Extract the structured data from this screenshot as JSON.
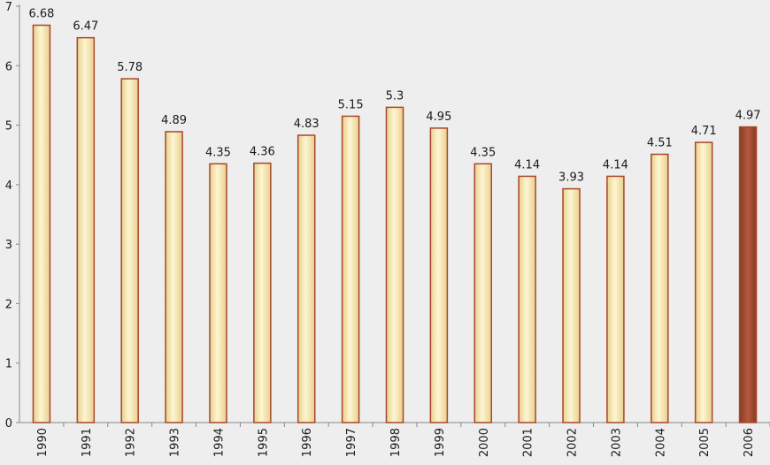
{
  "chart_data": {
    "type": "bar",
    "title": "",
    "xlabel": "",
    "ylabel": "",
    "categories": [
      "1990",
      "1991",
      "1992",
      "1993",
      "1994",
      "1995",
      "1996",
      "1997",
      "1998",
      "1999",
      "2000",
      "2001",
      "2002",
      "2003",
      "2004",
      "2005",
      "2006"
    ],
    "values": [
      6.68,
      6.47,
      5.78,
      4.89,
      4.35,
      4.36,
      4.83,
      5.15,
      5.3,
      4.95,
      4.35,
      4.14,
      3.93,
      4.14,
      4.51,
      4.71,
      4.97
    ],
    "value_labels": [
      "6.68",
      "6.47",
      "5.78",
      "4.89",
      "4.35",
      "4.36",
      "4.83",
      "5.15",
      "5.3",
      "4.95",
      "4.35",
      "4.14",
      "3.93",
      "4.14",
      "4.51",
      "4.71",
      "4.97"
    ],
    "ylim": [
      0,
      7
    ],
    "yticks": [
      "0",
      "1",
      "2",
      "3",
      "4",
      "5",
      "6",
      "7"
    ],
    "grid": false,
    "legend": "none",
    "highlight_category": "2006",
    "colors": {
      "background": "#eeeeee",
      "bar_fill_light": "#fdf6d2",
      "bar_fill_dark": "#e8cf8e",
      "bar_border": "#a8472a",
      "highlight_fill": "#b45a3e",
      "highlight_fill_dark": "#8a3a24",
      "axis": "#888888"
    }
  }
}
